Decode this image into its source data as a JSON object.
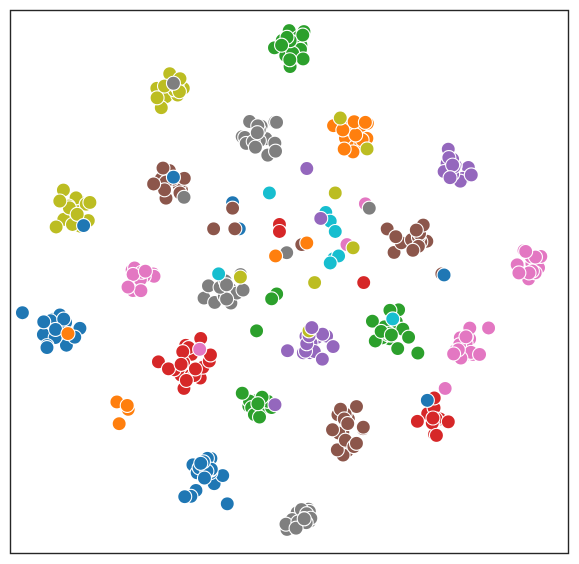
{
  "chart_data": {
    "type": "scatter",
    "title": "",
    "xlabel": "",
    "ylabel": "",
    "xlim": [
      0,
      100
    ],
    "ylim": [
      0,
      100
    ],
    "xticks": [],
    "yticks": [],
    "grid": false,
    "legend": "none",
    "colors": {
      "blue": "#1f77b4",
      "orange": "#ff7f0e",
      "green": "#2ca02c",
      "red": "#d62728",
      "purple": "#9467bd",
      "brown": "#8c564b",
      "pink": "#e377c2",
      "gray": "#7f7f7f",
      "olive": "#bcbd22",
      "cyan": "#17becf"
    },
    "clusters": [
      {
        "color": "green",
        "x": 50.6,
        "y": 94.0,
        "n": 22,
        "spread": 1.6
      },
      {
        "color": "olive",
        "x": 29.2,
        "y": 84.6,
        "n": 12,
        "spread": 1.8
      },
      {
        "color": "gray",
        "x": 44.9,
        "y": 76.9,
        "n": 18,
        "spread": 1.7
      },
      {
        "color": "orange",
        "x": 61.4,
        "y": 76.6,
        "n": 16,
        "spread": 1.7
      },
      {
        "color": "purple",
        "x": 79.4,
        "y": 70.6,
        "n": 15,
        "spread": 1.5
      },
      {
        "color": "brown",
        "x": 28.6,
        "y": 67.6,
        "n": 14,
        "spread": 1.7
      },
      {
        "color": "olive",
        "x": 11.6,
        "y": 62.9,
        "n": 16,
        "spread": 1.8
      },
      {
        "color": "brown",
        "x": 71.4,
        "y": 57.9,
        "n": 16,
        "spread": 1.7
      },
      {
        "color": "pink",
        "x": 92.7,
        "y": 53.7,
        "n": 14,
        "spread": 1.8
      },
      {
        "color": "pink",
        "x": 23.6,
        "y": 50.7,
        "n": 16,
        "spread": 1.8
      },
      {
        "color": "gray",
        "x": 38.6,
        "y": 48.6,
        "n": 16,
        "spread": 1.8
      },
      {
        "color": "blue",
        "x": 8.4,
        "y": 42.2,
        "n": 18,
        "spread": 1.8
      },
      {
        "color": "green",
        "x": 68.1,
        "y": 40.6,
        "n": 18,
        "spread": 1.8
      },
      {
        "color": "purple",
        "x": 53.1,
        "y": 38.6,
        "n": 15,
        "spread": 1.7
      },
      {
        "color": "pink",
        "x": 82.0,
        "y": 38.3,
        "n": 16,
        "spread": 1.8
      },
      {
        "color": "red",
        "x": 32.3,
        "y": 34.8,
        "n": 20,
        "spread": 2.0
      },
      {
        "color": "orange",
        "x": 20.3,
        "y": 26.7,
        "n": 4,
        "spread": 0.8
      },
      {
        "color": "green",
        "x": 44.5,
        "y": 27.3,
        "n": 16,
        "spread": 1.7
      },
      {
        "color": "brown",
        "x": 60.3,
        "y": 23.0,
        "n": 18,
        "spread": 1.8
      },
      {
        "color": "red",
        "x": 75.5,
        "y": 24.8,
        "n": 12,
        "spread": 1.6
      },
      {
        "color": "blue",
        "x": 34.8,
        "y": 13.9,
        "n": 18,
        "spread": 1.8
      },
      {
        "color": "gray",
        "x": 51.9,
        "y": 6.4,
        "n": 16,
        "spread": 1.6
      }
    ],
    "points": [
      {
        "color": "gray",
        "x": 29.2,
        "y": 86.6
      },
      {
        "color": "gray",
        "x": 47.5,
        "y": 74.1
      },
      {
        "color": "olive",
        "x": 59.1,
        "y": 80.2
      },
      {
        "color": "olive",
        "x": 63.9,
        "y": 74.5
      },
      {
        "color": "orange",
        "x": 63.6,
        "y": 79.4
      },
      {
        "color": "purple",
        "x": 53.1,
        "y": 70.9
      },
      {
        "color": "blue",
        "x": 29.2,
        "y": 69.3
      },
      {
        "color": "gray",
        "x": 31.1,
        "y": 65.6
      },
      {
        "color": "cyan",
        "x": 46.4,
        "y": 66.4
      },
      {
        "color": "olive",
        "x": 58.2,
        "y": 66.4
      },
      {
        "color": "blue",
        "x": 39.8,
        "y": 64.6
      },
      {
        "color": "brown",
        "x": 39.8,
        "y": 63.6
      },
      {
        "color": "blue",
        "x": 13.1,
        "y": 60.4
      },
      {
        "color": "pink",
        "x": 63.6,
        "y": 64.4
      },
      {
        "color": "gray",
        "x": 64.3,
        "y": 63.6
      },
      {
        "color": "cyan",
        "x": 56.5,
        "y": 62.8
      },
      {
        "color": "cyan",
        "x": 57.3,
        "y": 61.2
      },
      {
        "color": "purple",
        "x": 55.6,
        "y": 61.7
      },
      {
        "color": "brown",
        "x": 36.4,
        "y": 59.8
      },
      {
        "color": "blue",
        "x": 41.0,
        "y": 59.8
      },
      {
        "color": "brown",
        "x": 40.2,
        "y": 59.8
      },
      {
        "color": "red",
        "x": 48.2,
        "y": 60.6
      },
      {
        "color": "red",
        "x": 48.2,
        "y": 59.3
      },
      {
        "color": "cyan",
        "x": 58.2,
        "y": 59.3
      },
      {
        "color": "brown",
        "x": 52.2,
        "y": 56.9
      },
      {
        "color": "orange",
        "x": 53.1,
        "y": 57.2
      },
      {
        "color": "pink",
        "x": 60.3,
        "y": 56.9
      },
      {
        "color": "olive",
        "x": 61.4,
        "y": 56.3
      },
      {
        "color": "gray",
        "x": 49.5,
        "y": 55.4
      },
      {
        "color": "orange",
        "x": 47.5,
        "y": 54.8
      },
      {
        "color": "cyan",
        "x": 57.9,
        "y": 54.3
      },
      {
        "color": "cyan",
        "x": 58.8,
        "y": 54.8
      },
      {
        "color": "cyan",
        "x": 57.3,
        "y": 53.5
      },
      {
        "color": "cyan",
        "x": 37.3,
        "y": 51.5
      },
      {
        "color": "olive",
        "x": 41.2,
        "y": 50.9
      },
      {
        "color": "olive",
        "x": 54.5,
        "y": 49.9
      },
      {
        "color": "red",
        "x": 63.3,
        "y": 49.9
      },
      {
        "color": "brown",
        "x": 77.3,
        "y": 51.5
      },
      {
        "color": "blue",
        "x": 77.7,
        "y": 51.3
      },
      {
        "color": "green",
        "x": 47.7,
        "y": 47.8
      },
      {
        "color": "green",
        "x": 46.8,
        "y": 46.9
      },
      {
        "color": "green",
        "x": 44.1,
        "y": 41.0
      },
      {
        "color": "olive",
        "x": 53.5,
        "y": 41.0
      },
      {
        "color": "cyan",
        "x": 68.5,
        "y": 43.2
      },
      {
        "color": "orange",
        "x": 10.3,
        "y": 40.5
      },
      {
        "color": "pink",
        "x": 33.9,
        "y": 37.6
      },
      {
        "color": "purple",
        "x": 54.0,
        "y": 41.6
      },
      {
        "color": "pink",
        "x": 77.9,
        "y": 30.4
      },
      {
        "color": "blue",
        "x": 74.7,
        "y": 28.2
      },
      {
        "color": "purple",
        "x": 47.4,
        "y": 27.4
      }
    ]
  }
}
